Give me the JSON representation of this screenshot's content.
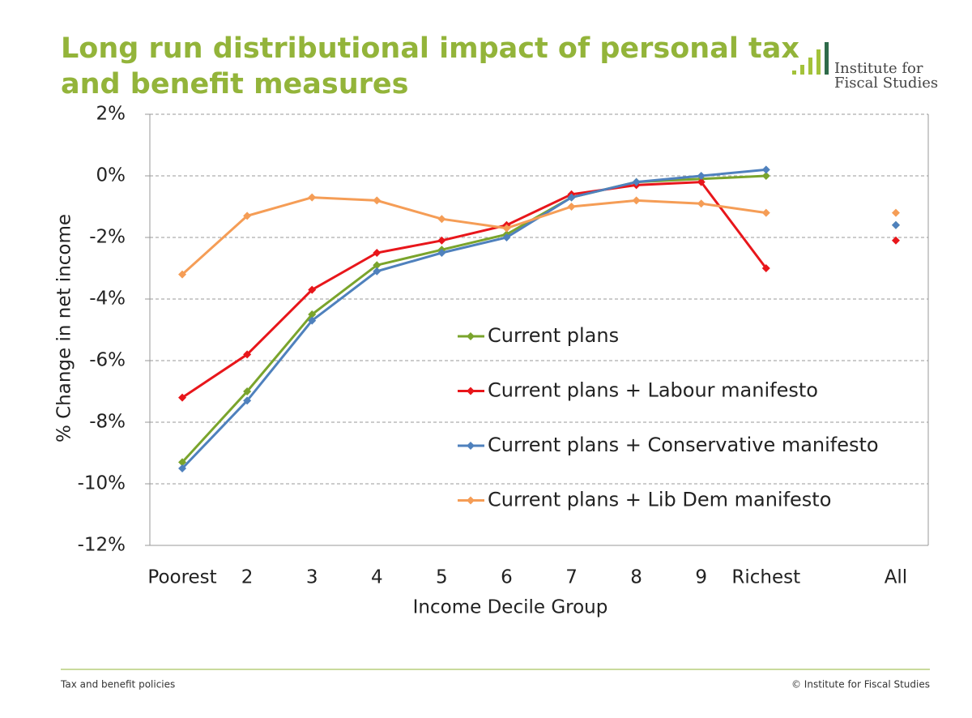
{
  "header": {
    "title_lines": [
      "Long run distributional impact of personal tax",
      "and benefit measures"
    ],
    "logo_lines": [
      "Institute for",
      "Fiscal Studies"
    ]
  },
  "chart_data": {
    "type": "line",
    "x_label": "Income Decile Group",
    "y_label": "% Change in net income",
    "categories": [
      "Poorest",
      "2",
      "3",
      "4",
      "5",
      "6",
      "7",
      "8",
      "9",
      "Richest",
      null,
      "All"
    ],
    "series": [
      {
        "name": "Current plans",
        "color": "#7aa42c",
        "values": [
          -9.3,
          -7.0,
          -4.5,
          -2.9,
          -2.4,
          -1.9,
          -0.7,
          -0.2,
          -0.1,
          0.0,
          null,
          -1.6
        ]
      },
      {
        "name": "Current plans + Labour manifesto",
        "color": "#e8161b",
        "values": [
          -7.2,
          -5.8,
          -3.7,
          -2.5,
          -2.1,
          -1.6,
          -0.6,
          -0.3,
          -0.2,
          -3.0,
          null,
          -2.1
        ]
      },
      {
        "name": "Current plans + Conservative manifesto",
        "color": "#4f81bd",
        "values": [
          -9.5,
          -7.3,
          -4.7,
          -3.1,
          -2.5,
          -2.0,
          -0.7,
          -0.2,
          0.0,
          0.2,
          null,
          -1.6
        ]
      },
      {
        "name": "Current plans + Lib Dem manifesto",
        "color": "#f59d56",
        "values": [
          -3.2,
          -1.3,
          -0.7,
          -0.8,
          -1.4,
          -1.7,
          -1.0,
          -0.8,
          -0.9,
          -1.2,
          null,
          -1.2
        ]
      }
    ],
    "ylim": [
      -12,
      2
    ],
    "yticks": [
      {
        "value": -12,
        "label": "-12%"
      },
      {
        "value": -10,
        "label": "-10%"
      },
      {
        "value": -8,
        "label": "-8%"
      },
      {
        "value": -6,
        "label": "-6%"
      },
      {
        "value": -4,
        "label": "-4%"
      },
      {
        "value": -2,
        "label": "-2%"
      },
      {
        "value": 0,
        "label": "0%"
      },
      {
        "value": 2,
        "label": "2%"
      }
    ],
    "grid": true
  },
  "footer": {
    "left": "Tax and benefit policies",
    "right": "© Institute for Fiscal Studies"
  }
}
